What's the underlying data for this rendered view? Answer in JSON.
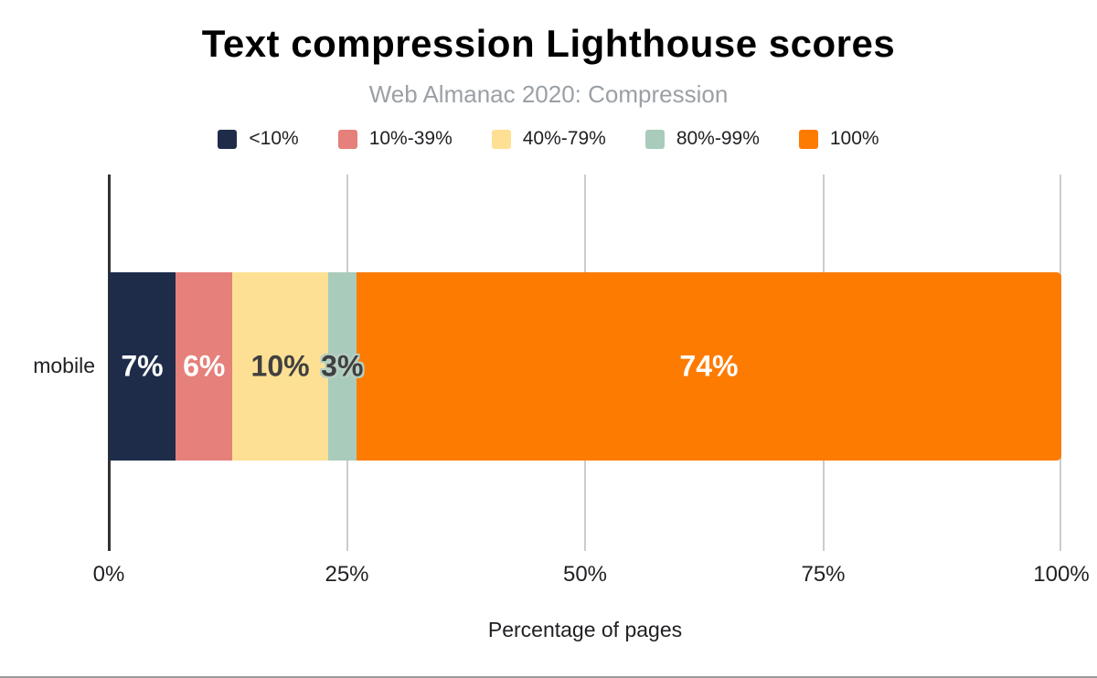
{
  "header": {
    "title": "Text compression Lighthouse scores",
    "subtitle": "Web Almanac 2020: Compression"
  },
  "chart_data": {
    "type": "bar",
    "stacked": true,
    "orientation": "horizontal",
    "title": "Text compression Lighthouse scores",
    "subtitle": "Web Almanac 2020: Compression",
    "categories": [
      "mobile"
    ],
    "series": [
      {
        "name": "<10%",
        "values": [
          7
        ],
        "label": "7%",
        "color": "#1e2c4a",
        "label_color": "#ffffff"
      },
      {
        "name": "10%-39%",
        "values": [
          6
        ],
        "label": "6%",
        "color": "#e5807a",
        "label_color": "#ffffff"
      },
      {
        "name": "40%-79%",
        "values": [
          10
        ],
        "label": "10%",
        "color": "#fde094",
        "label_color": "#404040"
      },
      {
        "name": "80%-99%",
        "values": [
          3
        ],
        "label": "3%",
        "color": "#a9cbbb",
        "label_color": "#404040"
      },
      {
        "name": "100%",
        "values": [
          74
        ],
        "label": "74%",
        "color": "#fe7b01",
        "label_color": "#ffffff"
      }
    ],
    "xlabel": "Percentage of pages",
    "ylabel": "",
    "x_ticks": [
      "0%",
      "25%",
      "50%",
      "75%",
      "100%"
    ],
    "xlim": [
      0,
      100
    ],
    "grid": true,
    "legend_position": "top"
  }
}
